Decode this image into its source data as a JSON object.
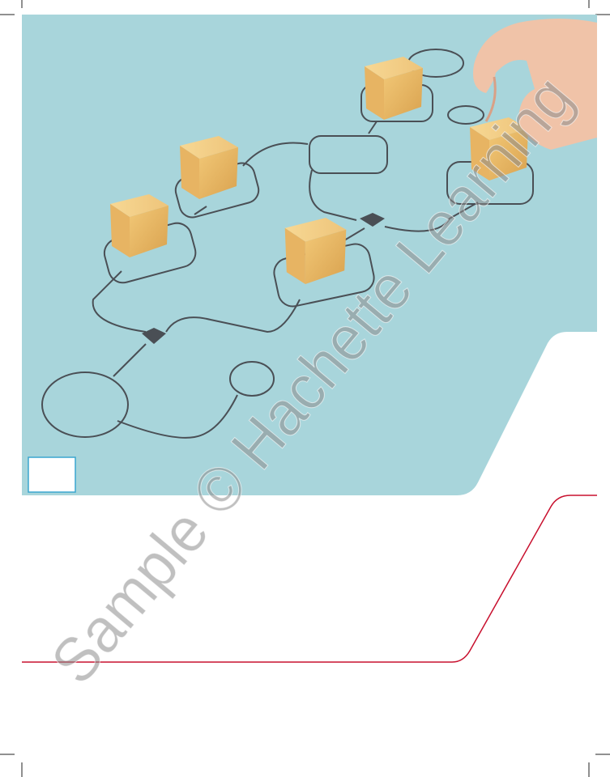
{
  "watermark": "Sample © Hachette Learning"
}
